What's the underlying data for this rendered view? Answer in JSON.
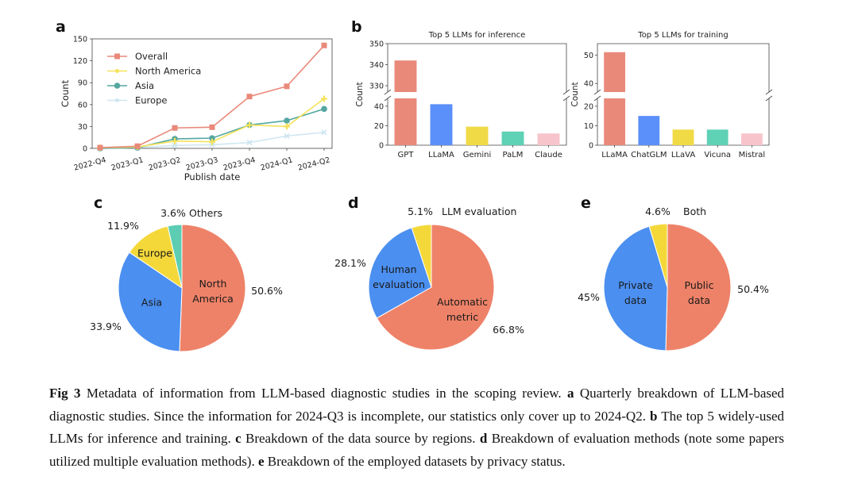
{
  "figure": {
    "panel_labels": {
      "a": "a",
      "b": "b",
      "c": "c",
      "d": "d",
      "e": "e"
    }
  },
  "chart_data": [
    {
      "id": "a",
      "type": "line",
      "title": "",
      "xlabel": "Publish date",
      "ylabel": "Count",
      "x": [
        "2022-Q4",
        "2023-Q1",
        "2023-Q2",
        "2023-Q3",
        "2023-Q4",
        "2024-Q1",
        "2024-Q2"
      ],
      "yticks": [
        0,
        30,
        60,
        90,
        120,
        150
      ],
      "ylim": [
        0,
        150
      ],
      "legend": "top-left",
      "series": [
        {
          "name": "Overall",
          "color": "#e9897a",
          "marker": "square",
          "values": [
            1,
            3,
            28,
            29,
            71,
            85,
            141
          ]
        },
        {
          "name": "North America",
          "color": "#f5e25a",
          "marker": "star",
          "values": [
            1,
            2,
            10,
            9,
            32,
            30,
            68
          ]
        },
        {
          "name": "Asia",
          "color": "#55a7a0",
          "marker": "circle",
          "values": [
            0,
            1,
            13,
            14,
            32,
            38,
            54
          ]
        },
        {
          "name": "Europe",
          "color": "#cfe6f1",
          "marker": "cross",
          "values": [
            0,
            1,
            4,
            5,
            8,
            17,
            22
          ]
        }
      ]
    },
    {
      "id": "b1",
      "type": "bar",
      "title": "Top 5 LLMs for inference",
      "ylabel": "Count",
      "categories": [
        "GPT",
        "LLaMA",
        "Gemini",
        "PaLM",
        "Claude"
      ],
      "values": [
        342,
        42,
        19,
        14,
        12
      ],
      "colors": [
        "#e9897a",
        "#5b8ff9",
        "#f0da45",
        "#5fd1b5",
        "#f7c4cb"
      ],
      "broken_axis": true,
      "upper_yticks": [
        330,
        340,
        350
      ],
      "lower_yticks": [
        0,
        20,
        40
      ]
    },
    {
      "id": "b2",
      "type": "bar",
      "title": "Top 5 LLMs for training",
      "ylabel": "Count",
      "categories": [
        "LLaMA",
        "ChatGLM",
        "LLaVA",
        "Vicuna",
        "Mistral"
      ],
      "values": [
        51,
        15,
        8,
        8,
        6
      ],
      "colors": [
        "#e9897a",
        "#5b8ff9",
        "#f0da45",
        "#5fd1b5",
        "#f7c4cb"
      ],
      "broken_axis": true,
      "upper_yticks": [
        40,
        50
      ],
      "lower_yticks": [
        0,
        10,
        20
      ]
    },
    {
      "id": "c",
      "type": "pie",
      "slices": [
        {
          "label": "North America",
          "inner": [
            "North",
            "America"
          ],
          "pct": "50.6%",
          "value": 50.6,
          "color": "#ee8268"
        },
        {
          "label": "Asia",
          "inner": [
            "Asia"
          ],
          "pct": "33.9%",
          "value": 33.9,
          "color": "#4b8ff0"
        },
        {
          "label": "Europe",
          "inner": [
            "Europe"
          ],
          "pct": "11.9%",
          "value": 11.9,
          "color": "#f4d83a"
        },
        {
          "label": "Others",
          "inner": [],
          "pct": "3.6%",
          "value": 3.6,
          "color": "#5ccdb2"
        }
      ]
    },
    {
      "id": "d",
      "type": "pie",
      "slices": [
        {
          "label": "Automatic metric",
          "inner": [
            "Automatic",
            "metric"
          ],
          "pct": "66.8%",
          "value": 66.8,
          "color": "#ee8268"
        },
        {
          "label": "Human evaluation",
          "inner": [
            "Human",
            "evaluation"
          ],
          "pct": "28.1%",
          "value": 28.1,
          "color": "#4b8ff0"
        },
        {
          "label": "LLM evaluation",
          "inner": [],
          "pct": "5.1%",
          "value": 5.1,
          "color": "#f4d83a"
        }
      ]
    },
    {
      "id": "e",
      "type": "pie",
      "slices": [
        {
          "label": "Public data",
          "inner": [
            "Public",
            "data"
          ],
          "pct": "50.4%",
          "value": 50.4,
          "color": "#ee8268"
        },
        {
          "label": "Private data",
          "inner": [
            "Private",
            "data"
          ],
          "pct": "45%",
          "value": 45.0,
          "color": "#4b8ff0"
        },
        {
          "label": "Both",
          "inner": [],
          "pct": "4.6%",
          "value": 4.6,
          "color": "#f4d83a"
        }
      ]
    }
  ],
  "caption": {
    "label": "Fig 3",
    "intro": "Metadata of information from LLM-based diagnostic studies in the scoping review.",
    "a_label": "a",
    "a_text": "Quarterly breakdown of LLM-based diagnostic studies. Since the information for 2024-Q3 is incomplete, our statistics only cover up to 2024-Q2.",
    "b_label": "b",
    "b_text": "The top 5 widely-used LLMs for inference and training.",
    "c_label": "c",
    "c_text": "Breakdown of the data source by regions.",
    "d_label": "d",
    "d_text": "Breakdown of evaluation methods (note some papers utilized multiple evaluation methods).",
    "e_label": "e",
    "e_text": "Breakdown of the employed datasets by privacy status."
  }
}
